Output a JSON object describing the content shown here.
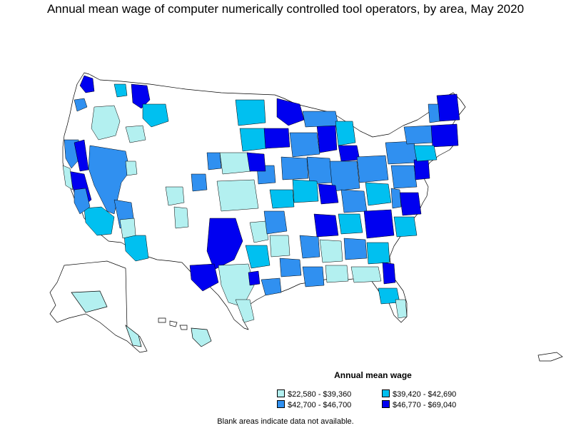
{
  "title": "Annual mean wage of computer numerically controlled tool operators, by area, May 2020",
  "legend": {
    "title": "Annual mean wage",
    "items": [
      {
        "label": "$22,580 - $39,360",
        "color": "#b3f0f0"
      },
      {
        "label": "$39,420 - $42,690",
        "color": "#00c0f0"
      },
      {
        "label": "$42,700 - $46,700",
        "color": "#3090f0"
      },
      {
        "label": "$46,770 - $69,040",
        "color": "#0000f0"
      }
    ]
  },
  "footnote": "Blank areas indicate data not available.",
  "colors": {
    "no_data": "#ffffff",
    "border": "#000000",
    "background": "#ffffff"
  }
}
